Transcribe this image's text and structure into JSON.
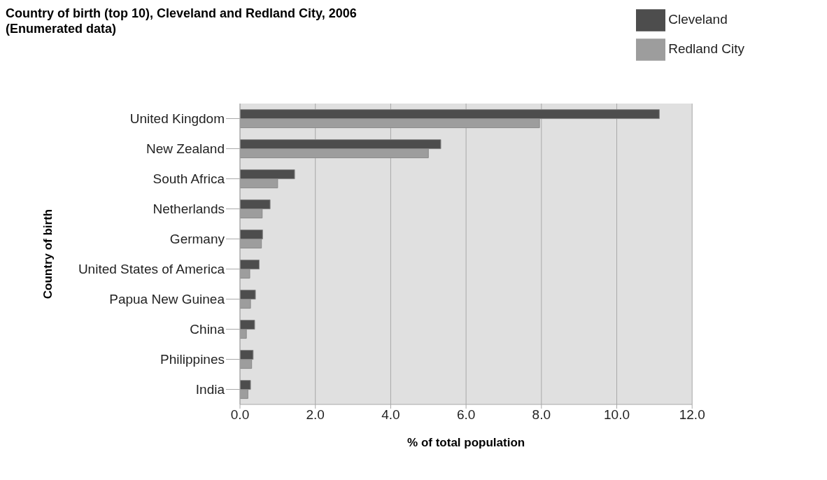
{
  "chart_data": {
    "type": "bar",
    "orientation": "horizontal",
    "title": "Country of birth (top 10), Cleveland and Redland City, 2006 (Enumerated data)",
    "xlabel": "% of total population",
    "ylabel": "Country of birth",
    "categories": [
      "United Kingdom",
      "New Zealand",
      "South Africa",
      "Netherlands",
      "Germany",
      "United States of America",
      "Papua New Guinea",
      "China",
      "Philippines",
      "India"
    ],
    "series": [
      {
        "name": "Cleveland",
        "color": "#4d4d4d",
        "values": [
          11.13,
          5.33,
          1.45,
          0.8,
          0.6,
          0.51,
          0.41,
          0.39,
          0.35,
          0.28
        ]
      },
      {
        "name": "Redland City",
        "color": "#9d9d9d",
        "values": [
          7.95,
          5.0,
          1.0,
          0.59,
          0.57,
          0.26,
          0.28,
          0.17,
          0.31,
          0.21
        ]
      }
    ],
    "xlim": [
      0,
      12
    ],
    "xticks": [
      {
        "value": 0,
        "label": "0.0"
      },
      {
        "value": 2,
        "label": "2.0"
      },
      {
        "value": 4,
        "label": "4.0"
      },
      {
        "value": 6,
        "label": "6.0"
      },
      {
        "value": 8,
        "label": "8.0"
      },
      {
        "value": 10,
        "label": "10.0"
      },
      {
        "value": 12,
        "label": "12.0"
      }
    ],
    "grid": "x",
    "legend": "top right"
  }
}
